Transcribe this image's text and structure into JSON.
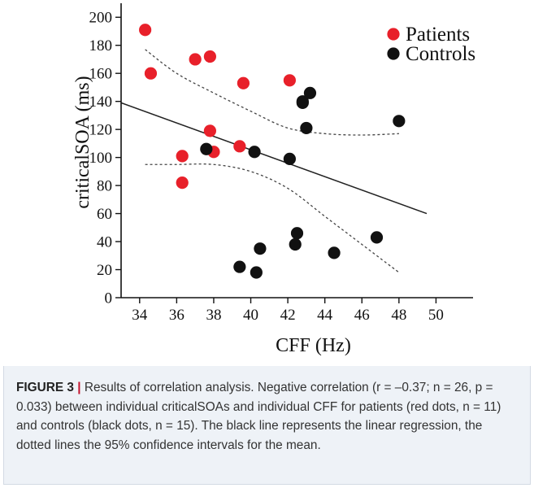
{
  "caption": {
    "label": "FIGURE 3",
    "separator": "|",
    "text": "Results of correlation analysis. Negative correlation (r = –0.37; n = 26, p = 0.033) between individual criticalSOAs and individual CFF for patients (red dots, n = 11) and controls (black dots, n = 15). The black line represents the linear regression, the dotted lines the 95% confidence intervals for the mean."
  },
  "chart_data": {
    "type": "scatter",
    "xlabel": "CFF (Hz)",
    "ylabel": "criticalSOA (ms)",
    "xlim": [
      33,
      52
    ],
    "ylim": [
      0,
      210
    ],
    "xticks": [
      34,
      36,
      38,
      40,
      42,
      44,
      46,
      48,
      50
    ],
    "yticks": [
      0,
      20,
      40,
      60,
      80,
      100,
      120,
      140,
      160,
      180,
      200
    ],
    "grid": false,
    "legend_position": "top-right",
    "series": [
      {
        "name": "Patients",
        "color": "#e8202a",
        "points": [
          {
            "x": 34.3,
            "y": 191
          },
          {
            "x": 34.6,
            "y": 160
          },
          {
            "x": 36.3,
            "y": 101
          },
          {
            "x": 36.3,
            "y": 82
          },
          {
            "x": 37.0,
            "y": 170
          },
          {
            "x": 37.8,
            "y": 172
          },
          {
            "x": 37.8,
            "y": 119
          },
          {
            "x": 38.0,
            "y": 104
          },
          {
            "x": 39.4,
            "y": 108
          },
          {
            "x": 39.6,
            "y": 153
          },
          {
            "x": 42.1,
            "y": 155
          }
        ]
      },
      {
        "name": "Controls",
        "color": "#111111",
        "points": [
          {
            "x": 37.6,
            "y": 106
          },
          {
            "x": 39.4,
            "y": 22
          },
          {
            "x": 40.2,
            "y": 104
          },
          {
            "x": 40.3,
            "y": 18
          },
          {
            "x": 40.5,
            "y": 35
          },
          {
            "x": 42.1,
            "y": 99
          },
          {
            "x": 42.4,
            "y": 38
          },
          {
            "x": 42.5,
            "y": 46
          },
          {
            "x": 42.8,
            "y": 140
          },
          {
            "x": 42.8,
            "y": 139
          },
          {
            "x": 43.0,
            "y": 121
          },
          {
            "x": 43.2,
            "y": 146
          },
          {
            "x": 44.5,
            "y": 32
          },
          {
            "x": 46.8,
            "y": 43
          },
          {
            "x": 48.0,
            "y": 126
          }
        ]
      }
    ],
    "regression_line": [
      {
        "x": 33,
        "y": 139
      },
      {
        "x": 49.5,
        "y": 60
      }
    ],
    "confidence_upper": [
      {
        "x": 34.3,
        "y": 177
      },
      {
        "x": 36,
        "y": 160
      },
      {
        "x": 38,
        "y": 146
      },
      {
        "x": 40,
        "y": 133
      },
      {
        "x": 42,
        "y": 121
      },
      {
        "x": 44,
        "y": 117
      },
      {
        "x": 46,
        "y": 116
      },
      {
        "x": 48,
        "y": 117
      }
    ],
    "confidence_lower": [
      {
        "x": 34.3,
        "y": 95
      },
      {
        "x": 36,
        "y": 95
      },
      {
        "x": 38,
        "y": 95
      },
      {
        "x": 40,
        "y": 90
      },
      {
        "x": 42,
        "y": 78
      },
      {
        "x": 44,
        "y": 58
      },
      {
        "x": 46,
        "y": 38
      },
      {
        "x": 48,
        "y": 18
      }
    ]
  }
}
